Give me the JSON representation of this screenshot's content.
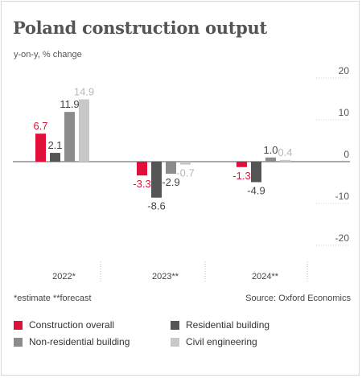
{
  "title": "Poland construction output",
  "subtitle": "y-on-y, % change",
  "footnote": "*estimate  **forecast",
  "source": "Source: Oxford Economics",
  "chart_data": {
    "type": "bar",
    "categories": [
      "2022*",
      "2023**",
      "2024**"
    ],
    "series": [
      {
        "name": "Construction overall",
        "values": [
          6.7,
          -3.3,
          -1.3
        ],
        "labels": [
          "6.7",
          "-3.3",
          "-1.3"
        ],
        "color": "#e0103a"
      },
      {
        "name": "Residential building",
        "values": [
          2.1,
          -8.6,
          -4.9
        ],
        "labels": [
          "2.1",
          "-8.6",
          "-4.9"
        ],
        "color": "#555555"
      },
      {
        "name": "Non-residential building",
        "values": [
          11.9,
          -2.9,
          1.0
        ],
        "labels": [
          "11.9",
          "-2.9",
          "1.0"
        ],
        "color": "#8c8c8c"
      },
      {
        "name": "Civil engineering",
        "values": [
          14.9,
          -0.7,
          0.4
        ],
        "labels": [
          "14.9",
          "-0.7",
          "0.4"
        ],
        "color": "#c8c8c8"
      }
    ],
    "label_colors": [
      "#e0103a",
      "#444444",
      "#444444",
      "#b8b8b8"
    ],
    "y_ticks": [
      20,
      10,
      0,
      -10,
      -20
    ],
    "y_tick_labels": [
      "20",
      "10",
      "0",
      "-10",
      "-20"
    ],
    "ylim": [
      -20,
      20
    ],
    "y_axis_position": "right",
    "grid": true,
    "legend_position": "bottom"
  }
}
